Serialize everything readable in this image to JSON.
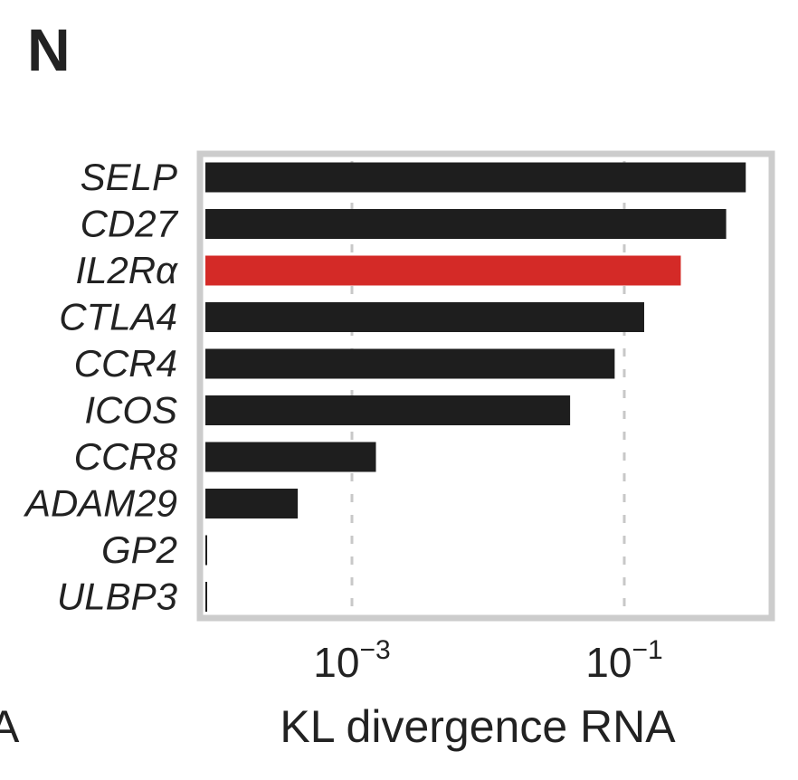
{
  "panel_letter": "N",
  "edge_fragment": "A",
  "chart_data": {
    "type": "bar",
    "orientation": "horizontal",
    "categories": [
      "SELP",
      "CD27",
      "IL2Rα",
      "CTLA4",
      "CCR4",
      "ICOS",
      "CCR8",
      "ADAM29",
      "GP2",
      "ULBP3"
    ],
    "values": [
      0.78,
      0.56,
      0.26,
      0.14,
      0.085,
      0.04,
      0.0015,
      0.0004,
      7e-05,
      3.5e-05
    ],
    "xlabel": "KL divergence RNA",
    "xscale": "log",
    "xlim": [
      2e-05,
      1.2
    ],
    "xticks": [
      {
        "value": 0.001,
        "base": "10",
        "exponent": "−3"
      },
      {
        "value": 0.1,
        "base": "10",
        "exponent": "−1"
      }
    ],
    "grid": "vertical dashed at ticks",
    "colors": {
      "default_bar": "#1e1e1e",
      "highlight_bar": "#d42a27",
      "frame": "#cccccc",
      "grid": "#c8c8c8",
      "text": "#222222"
    },
    "highlight": "IL2Rα"
  }
}
